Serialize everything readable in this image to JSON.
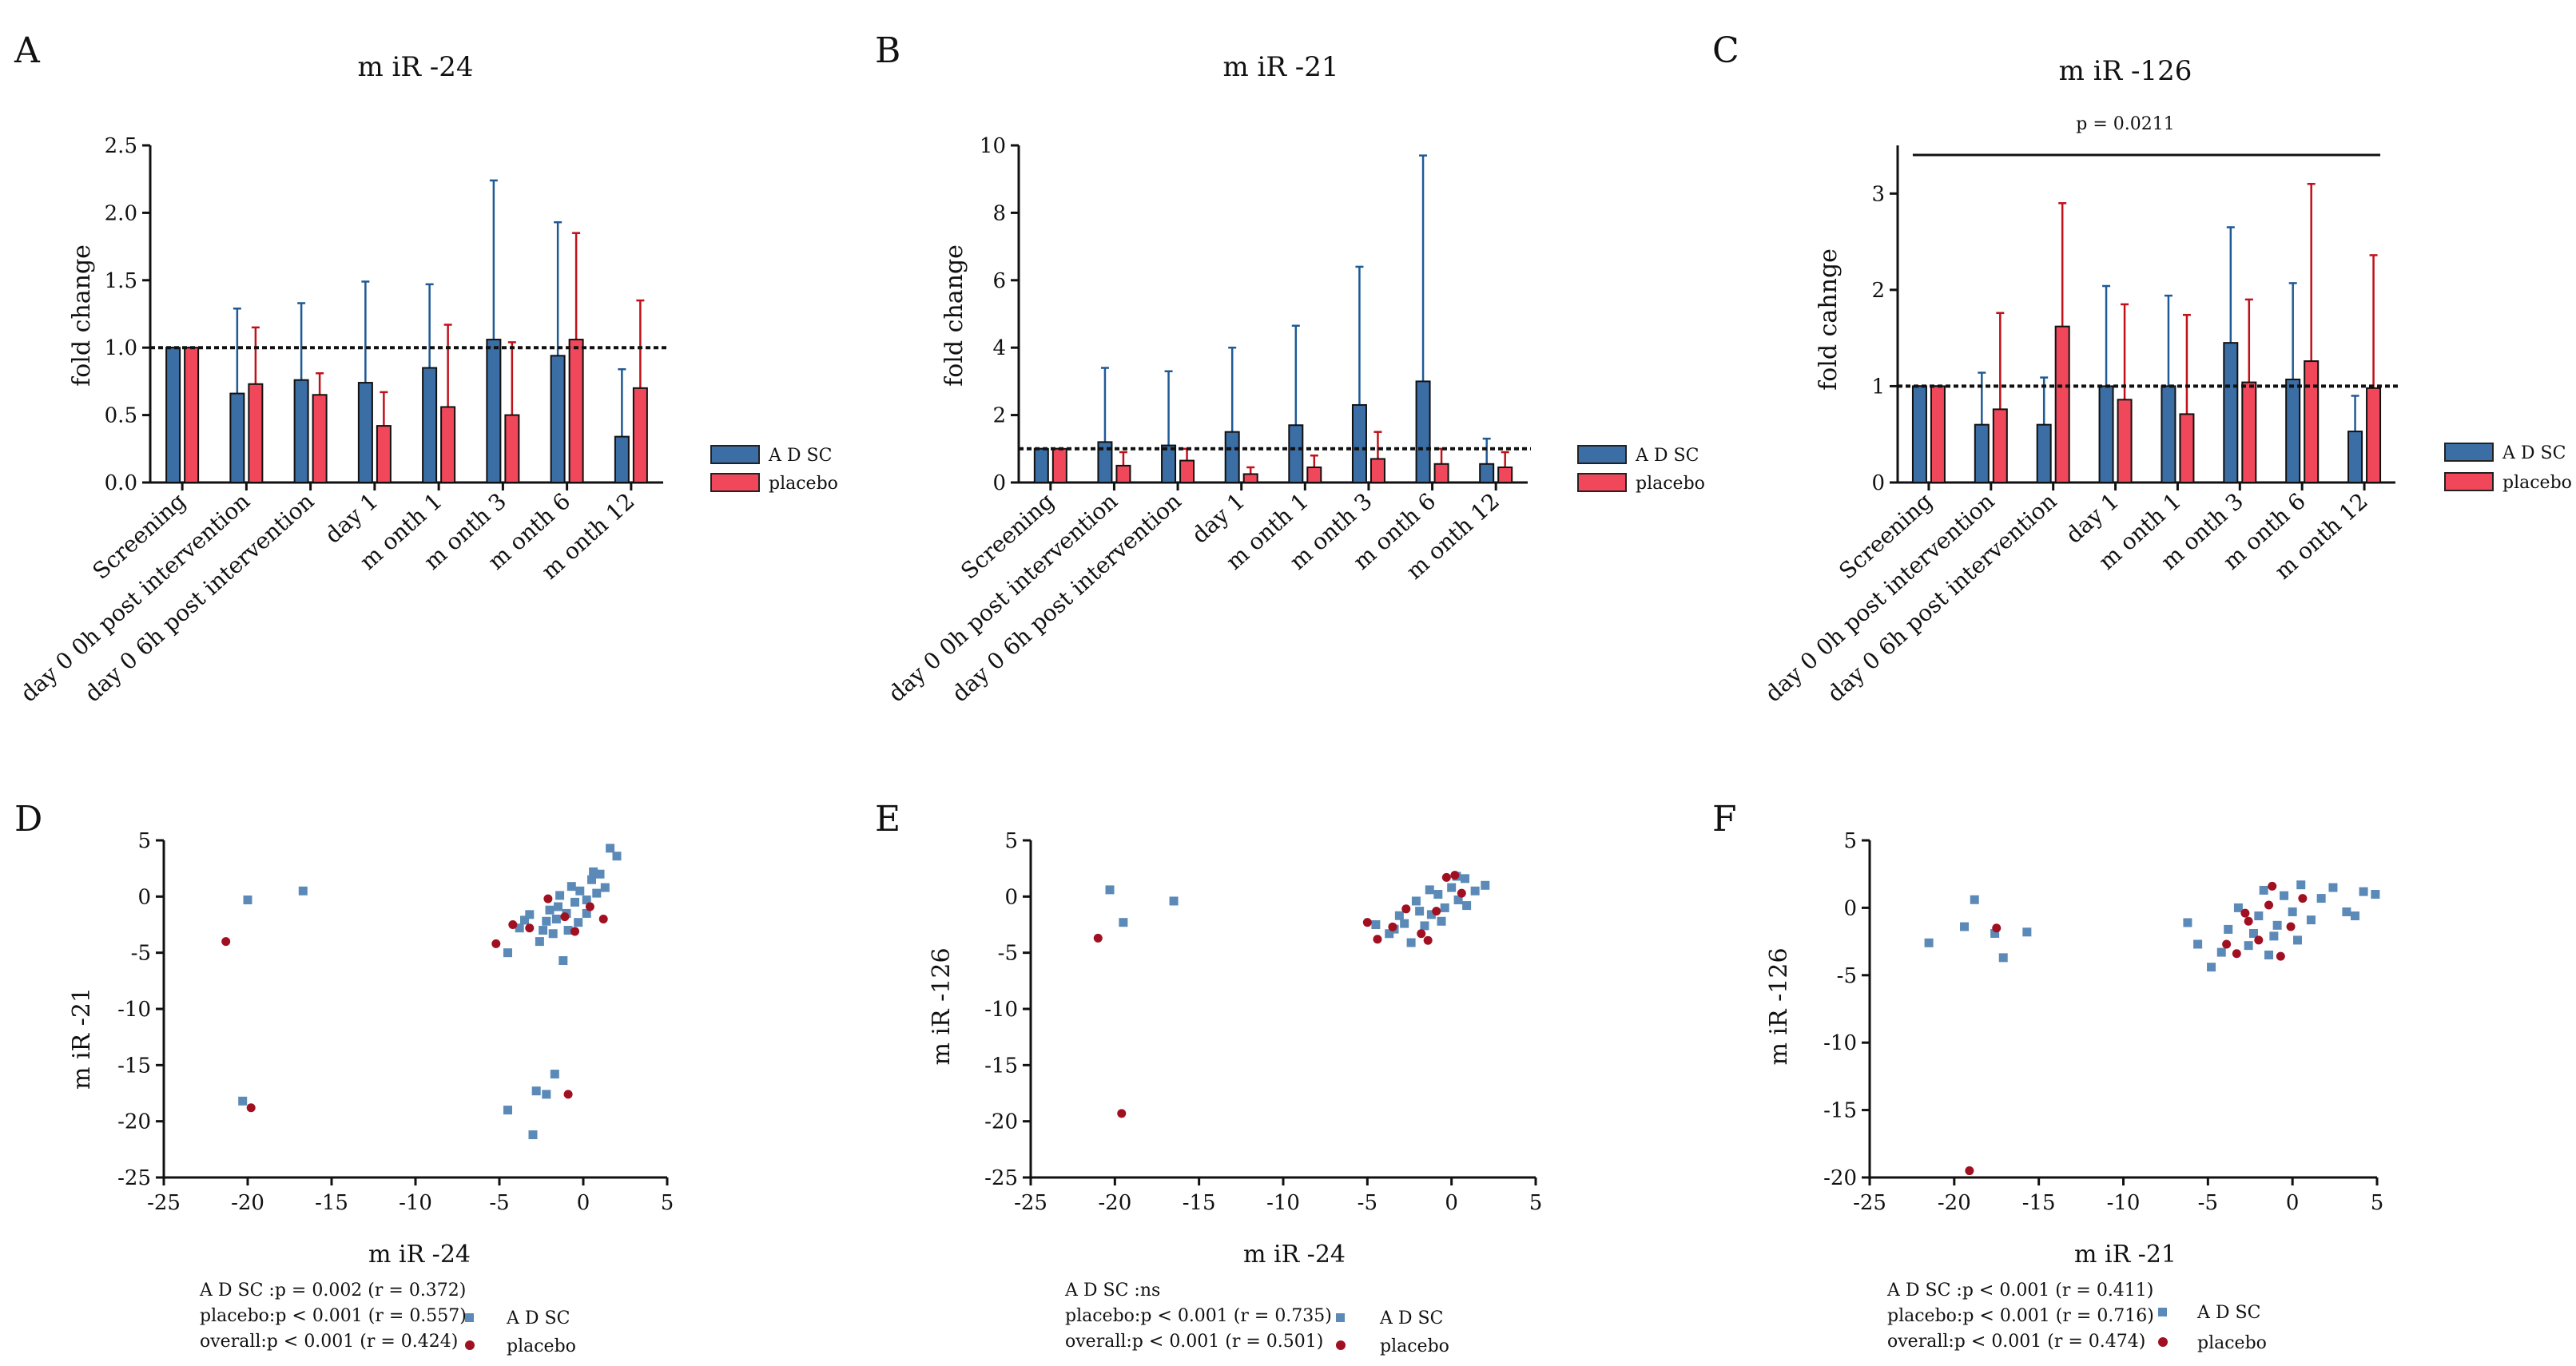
{
  "colors": {
    "adsc": "#3b6ea5",
    "placebo": "#f0485a",
    "adsc_point": "#5b8ab8",
    "placebo_point": "#a01020",
    "error_adsc": "#1f5a96",
    "error_placebo": "#c01018"
  },
  "chart_data": [
    {
      "type": "bar",
      "panel": "A",
      "title": "m iR -24",
      "xlabel": "",
      "ylabel": "fold change",
      "categories": [
        "Screening",
        "day 0 0h post intervention",
        "day 0 6h post intervention",
        "day 1",
        "m onth 1",
        "m onth 3",
        "m onth 6",
        "m onth 12"
      ],
      "ylim": [
        0,
        2.5
      ],
      "yticks": [
        "0.0",
        "0.5",
        "1.0",
        "1.5",
        "2.0",
        "2.5"
      ],
      "reference_line": 1.0,
      "series": [
        {
          "name": "A D SC",
          "values": [
            1.0,
            0.66,
            0.76,
            0.74,
            0.85,
            1.06,
            0.94,
            0.34
          ],
          "errors_upper": [
            1.0,
            1.29,
            1.33,
            1.49,
            1.47,
            2.24,
            1.93,
            0.84
          ]
        },
        {
          "name": "placebo",
          "values": [
            1.0,
            0.73,
            0.65,
            0.42,
            0.56,
            0.5,
            1.06,
            0.7
          ],
          "errors_upper": [
            1.0,
            1.15,
            0.81,
            0.67,
            1.17,
            1.04,
            1.85,
            1.35
          ]
        }
      ],
      "annotation": null
    },
    {
      "type": "bar",
      "panel": "B",
      "title": "m iR -21",
      "xlabel": "",
      "ylabel": "fold change",
      "categories": [
        "Screening",
        "day 0 0h post intervention",
        "day 0 6h post intervention",
        "day 1",
        "m onth 1",
        "m onth 3",
        "m onth 6",
        "m onth 12"
      ],
      "ylim": [
        0,
        10
      ],
      "yticks": [
        "0",
        "2",
        "4",
        "6",
        "8",
        "10"
      ],
      "reference_line": 1.0,
      "series": [
        {
          "name": "A D SC",
          "values": [
            1.0,
            1.2,
            1.1,
            1.5,
            1.7,
            2.3,
            3.0,
            0.55
          ],
          "errors_upper": [
            1.0,
            3.4,
            3.3,
            4.0,
            4.65,
            6.4,
            9.7,
            1.3
          ]
        },
        {
          "name": "placebo",
          "values": [
            1.0,
            0.5,
            0.65,
            0.25,
            0.45,
            0.7,
            0.55,
            0.45
          ],
          "errors_upper": [
            1.0,
            0.9,
            1.0,
            0.45,
            0.8,
            1.5,
            1.0,
            0.9
          ]
        }
      ],
      "annotation": null
    },
    {
      "type": "bar",
      "panel": "C",
      "title": "m iR -126",
      "xlabel": "",
      "ylabel": "fold cahnge",
      "categories": [
        "Screening",
        "day 0 0h post intervention",
        "day 0 6h post intervention",
        "day 1",
        "m onth 1",
        "m onth 3",
        "m onth 6",
        "m onth 12"
      ],
      "ylim": [
        0,
        3.5
      ],
      "yticks": [
        "0",
        "1",
        "2",
        "3"
      ],
      "reference_line": 1.0,
      "series": [
        {
          "name": "A D SC",
          "values": [
            1.0,
            0.6,
            0.6,
            1.0,
            1.0,
            1.45,
            1.07,
            0.53
          ],
          "errors_upper": [
            1.0,
            1.14,
            1.09,
            2.04,
            1.94,
            2.65,
            2.07,
            0.9
          ]
        },
        {
          "name": "placebo",
          "values": [
            1.0,
            0.76,
            1.62,
            0.86,
            0.71,
            1.04,
            1.26,
            0.98
          ],
          "errors_upper": [
            1.0,
            1.76,
            2.9,
            1.85,
            1.74,
            1.9,
            3.1,
            2.36
          ]
        }
      ],
      "annotation": {
        "text": "p = 0.0211",
        "y": 3.4,
        "from_category": 0,
        "to_category": 7
      }
    },
    {
      "type": "scatter",
      "panel": "D",
      "title": "",
      "xlabel": "m iR -24",
      "ylabel": "m iR -21",
      "xlim": [
        -25,
        5
      ],
      "ylim": [
        -25,
        5
      ],
      "xticks": [
        "-25",
        "-20",
        "-15",
        "-10",
        "-5",
        "0",
        "5"
      ],
      "yticks": [
        "5",
        "0",
        "-5",
        "-10",
        "-15",
        "-20",
        "-25"
      ],
      "series": [
        {
          "name": "A D SC",
          "marker": "square",
          "points": [
            [
              -20,
              -0.3
            ],
            [
              -16.7,
              0.5
            ],
            [
              -20.3,
              -18.2
            ],
            [
              -4.5,
              -19
            ],
            [
              -3,
              -21.2
            ],
            [
              -2.8,
              -17.3
            ],
            [
              -2.2,
              -17.6
            ],
            [
              -1.7,
              -15.8
            ],
            [
              -4.5,
              -5
            ],
            [
              -3.8,
              -2.8
            ],
            [
              -3.2,
              -1.6
            ],
            [
              -2.6,
              -4
            ],
            [
              -2.2,
              -2.2
            ],
            [
              -1.8,
              -3.3
            ],
            [
              -1.5,
              -0.9
            ],
            [
              -1.2,
              -5.7
            ],
            [
              -1,
              -1.5
            ],
            [
              -0.9,
              -3
            ],
            [
              -0.5,
              -0.5
            ],
            [
              -0.2,
              0.5
            ],
            [
              0.2,
              -0.3
            ],
            [
              0.5,
              1.5
            ],
            [
              0.8,
              0.3
            ],
            [
              1,
              2
            ],
            [
              1.3,
              0.8
            ],
            [
              1.6,
              4.3
            ],
            [
              2,
              3.6
            ],
            [
              -2,
              -1.2
            ],
            [
              -1.4,
              0.1
            ],
            [
              0.2,
              -1.5
            ],
            [
              -0.7,
              0.9
            ],
            [
              0.6,
              2.2
            ],
            [
              -3.5,
              -2.1
            ],
            [
              -2.4,
              -3
            ],
            [
              -1.6,
              -2
            ],
            [
              -0.3,
              -2.3
            ]
          ]
        },
        {
          "name": "placebo",
          "marker": "circle",
          "points": [
            [
              -21.3,
              -4
            ],
            [
              -19.8,
              -18.8
            ],
            [
              -0.9,
              -17.6
            ],
            [
              -5.2,
              -4.2
            ],
            [
              -4.2,
              -2.5
            ],
            [
              -3.2,
              -2.8
            ],
            [
              -2.1,
              -0.2
            ],
            [
              -1.1,
              -1.8
            ],
            [
              -0.5,
              -3.1
            ],
            [
              0.4,
              -0.9
            ],
            [
              1.2,
              -2
            ]
          ]
        }
      ],
      "stats": [
        "A D SC :p = 0.002 (r = 0.372)",
        "placebo:p < 0.001 (r = 0.557)",
        "overall:p < 0.001 (r = 0.424)"
      ]
    },
    {
      "type": "scatter",
      "panel": "E",
      "title": "",
      "xlabel": "m iR -24",
      "ylabel": "m iR -126",
      "xlim": [
        -25,
        5
      ],
      "ylim": [
        -25,
        5
      ],
      "xticks": [
        "-25",
        "-20",
        "-15",
        "-10",
        "-5",
        "0",
        "5"
      ],
      "yticks": [
        "5",
        "0",
        "-5",
        "-10",
        "-15",
        "-20",
        "-25"
      ],
      "series": [
        {
          "name": "A D SC",
          "marker": "square",
          "points": [
            [
              -20.3,
              0.6
            ],
            [
              -19.5,
              -2.3
            ],
            [
              -16.5,
              -0.4
            ],
            [
              -4.5,
              -2.5
            ],
            [
              -3.7,
              -3.3
            ],
            [
              -3.1,
              -1.7
            ],
            [
              -2.4,
              -4.1
            ],
            [
              -2.1,
              -0.4
            ],
            [
              -1.6,
              -2.6
            ],
            [
              -1.2,
              -1.6
            ],
            [
              -0.8,
              0.2
            ],
            [
              -0.4,
              -1
            ],
            [
              0,
              0.8
            ],
            [
              0.4,
              -0.3
            ],
            [
              0.8,
              1.6
            ],
            [
              1.4,
              0.5
            ],
            [
              2,
              1
            ],
            [
              -2.8,
              -2.4
            ],
            [
              -1.9,
              -1.3
            ],
            [
              -0.6,
              -2.2
            ],
            [
              0.3,
              1.8
            ],
            [
              -1.3,
              0.6
            ],
            [
              -3.4,
              -2.9
            ],
            [
              0.9,
              -0.8
            ]
          ]
        },
        {
          "name": "placebo",
          "marker": "circle",
          "points": [
            [
              -21,
              -3.7
            ],
            [
              -19.6,
              -19.3
            ],
            [
              -5,
              -2.3
            ],
            [
              -4.4,
              -3.8
            ],
            [
              -3.5,
              -2.7
            ],
            [
              -2.7,
              -1.1
            ],
            [
              -1.8,
              -3.3
            ],
            [
              -0.9,
              -1.3
            ],
            [
              -0.3,
              1.7
            ],
            [
              0.6,
              0.3
            ],
            [
              -1.4,
              -3.9
            ],
            [
              0.2,
              1.9
            ]
          ]
        }
      ],
      "stats": [
        "A D SC :ns",
        "placebo:p < 0.001 (r = 0.735)",
        "overall:p < 0.001 (r = 0.501)"
      ]
    },
    {
      "type": "scatter",
      "panel": "F",
      "title": "",
      "xlabel": "m iR -21",
      "ylabel": "m iR -126",
      "xlim": [
        -25,
        5
      ],
      "ylim": [
        -20,
        5
      ],
      "xticks": [
        "-25",
        "-20",
        "-15",
        "-10",
        "-5",
        "0",
        "5"
      ],
      "yticks": [
        "5",
        "0",
        "-5",
        "-10",
        "-15",
        "-20"
      ],
      "series": [
        {
          "name": "A D SC",
          "marker": "square",
          "points": [
            [
              -21.5,
              -2.6
            ],
            [
              -19.4,
              -1.4
            ],
            [
              -18.8,
              0.6
            ],
            [
              -17.6,
              -1.9
            ],
            [
              -17.1,
              -3.7
            ],
            [
              -15.7,
              -1.8
            ],
            [
              -6.2,
              -1.1
            ],
            [
              -5.6,
              -2.7
            ],
            [
              -4.8,
              -4.4
            ],
            [
              -4.2,
              -3.3
            ],
            [
              -3.8,
              -1.6
            ],
            [
              -3.2,
              0
            ],
            [
              -2.6,
              -2.8
            ],
            [
              -2,
              -0.6
            ],
            [
              -1.4,
              -3.5
            ],
            [
              -0.9,
              -1.3
            ],
            [
              -0.5,
              0.9
            ],
            [
              0,
              -0.3
            ],
            [
              0.5,
              1.7
            ],
            [
              1.1,
              -0.9
            ],
            [
              1.7,
              0.7
            ],
            [
              2.4,
              1.5
            ],
            [
              3.2,
              -0.3
            ],
            [
              3.7,
              -0.6
            ],
            [
              4.2,
              1.2
            ],
            [
              4.9,
              1
            ],
            [
              -2.3,
              -1.9
            ],
            [
              -1.7,
              1.3
            ],
            [
              -1.1,
              -2.1
            ],
            [
              0.3,
              -2.4
            ]
          ]
        },
        {
          "name": "placebo",
          "marker": "circle",
          "points": [
            [
              -17.5,
              -1.5
            ],
            [
              -19.1,
              -19.5
            ],
            [
              -3.9,
              -2.7
            ],
            [
              -3.3,
              -3.4
            ],
            [
              -2.6,
              -1
            ],
            [
              -2,
              -2.4
            ],
            [
              -1.4,
              0.2
            ],
            [
              -0.7,
              -3.6
            ],
            [
              -0.1,
              -1.4
            ],
            [
              0.6,
              0.7
            ],
            [
              -1.2,
              1.6
            ],
            [
              -2.8,
              -0.4
            ]
          ]
        }
      ],
      "stats": [
        "A D SC :p < 0.001 (r = 0.411)",
        "placebo:p < 0.001 (r = 0.716)",
        "overall:p < 0.001 (r = 0.474)"
      ]
    }
  ]
}
